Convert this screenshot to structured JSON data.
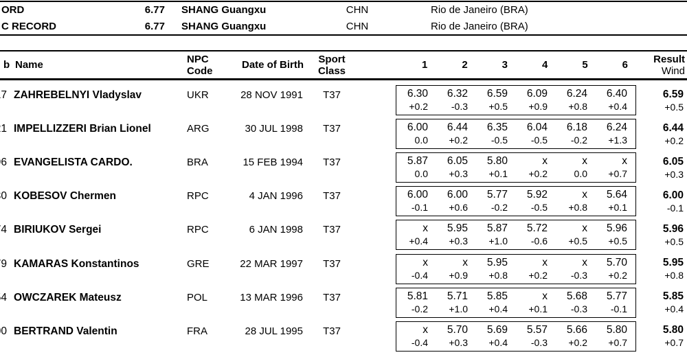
{
  "colors": {
    "background": "#ffffff",
    "text": "#000000",
    "rule": "#000000"
  },
  "records": {
    "rows": [
      {
        "label": "ORD",
        "mark": "6.77",
        "athlete": "SHANG Guangxu",
        "npc": "CHN",
        "location": "Rio de Janeiro (BRA)"
      },
      {
        "label": "C RECORD",
        "mark": "6.77",
        "athlete": "SHANG Guangxu",
        "npc": "CHN",
        "location": "Rio de Janeiro (BRA)"
      }
    ]
  },
  "table": {
    "header": {
      "bib": "b",
      "name": "Name",
      "npc_line1": "NPC",
      "npc_line2": "Code",
      "dob": "Date of Birth",
      "class_line1": "Sport",
      "class_line2": "Class",
      "attempts": [
        "1",
        "2",
        "3",
        "4",
        "5",
        "6"
      ],
      "result_line1": "Result",
      "result_line2": "Wind"
    },
    "rows": [
      {
        "bib": "17",
        "name": "ZAHREBELNYI Vladyslav",
        "npc": "UKR",
        "dob": "28 NOV 1991",
        "sport_class": "T37",
        "attempts": [
          {
            "d": "6.30",
            "w": "+0.2"
          },
          {
            "d": "6.32",
            "w": "-0.3"
          },
          {
            "d": "6.59",
            "w": "+0.5"
          },
          {
            "d": "6.09",
            "w": "+0.9"
          },
          {
            "d": "6.24",
            "w": "+0.8"
          },
          {
            "d": "6.40",
            "w": "+0.4"
          }
        ],
        "result": "6.59",
        "result_wind": "+0.5"
      },
      {
        "bib": "21",
        "name": "IMPELLIZZERI Brian Lionel",
        "npc": "ARG",
        "dob": "30 JUL 1998",
        "sport_class": "T37",
        "attempts": [
          {
            "d": "6.00",
            "w": "0.0"
          },
          {
            "d": "6.44",
            "w": "+0.2"
          },
          {
            "d": "6.35",
            "w": "-0.5"
          },
          {
            "d": "6.04",
            "w": "-0.5"
          },
          {
            "d": "6.18",
            "w": "-0.2"
          },
          {
            "d": "6.24",
            "w": "+1.3"
          }
        ],
        "result": "6.44",
        "result_wind": "+0.2"
      },
      {
        "bib": "96",
        "name": "EVANGELISTA CARDO.",
        "npc": "BRA",
        "dob": "15 FEB 1994",
        "sport_class": "T37",
        "attempts": [
          {
            "d": "5.87",
            "w": "0.0"
          },
          {
            "d": "6.05",
            "w": "+0.3"
          },
          {
            "d": "5.80",
            "w": "+0.1"
          },
          {
            "d": "x",
            "w": "+0.2"
          },
          {
            "d": "x",
            "w": "0.0"
          },
          {
            "d": "x",
            "w": "+0.7"
          }
        ],
        "result": "6.05",
        "result_wind": "+0.3"
      },
      {
        "bib": "30",
        "name": "KOBESOV Chermen",
        "npc": "RPC",
        "dob": "4 JAN 1996",
        "sport_class": "T37",
        "attempts": [
          {
            "d": "6.00",
            "w": "-0.1"
          },
          {
            "d": "6.00",
            "w": "+0.6"
          },
          {
            "d": "5.77",
            "w": "-0.2"
          },
          {
            "d": "5.92",
            "w": "-0.5"
          },
          {
            "d": "x",
            "w": "+0.8"
          },
          {
            "d": "5.64",
            "w": "+0.1"
          }
        ],
        "result": "6.00",
        "result_wind": "-0.1"
      },
      {
        "bib": "74",
        "name": "BIRIUKOV Sergei",
        "npc": "RPC",
        "dob": "6 JAN 1998",
        "sport_class": "T37",
        "attempts": [
          {
            "d": "x",
            "w": "+0.4"
          },
          {
            "d": "5.95",
            "w": "+0.3"
          },
          {
            "d": "5.87",
            "w": "+1.0"
          },
          {
            "d": "5.72",
            "w": "-0.6"
          },
          {
            "d": "x",
            "w": "+0.5"
          },
          {
            "d": "5.96",
            "w": "+0.5"
          }
        ],
        "result": "5.96",
        "result_wind": "+0.5"
      },
      {
        "bib": "79",
        "name": "KAMARAS Konstantinos",
        "npc": "GRE",
        "dob": "22 MAR 1997",
        "sport_class": "T37",
        "attempts": [
          {
            "d": "x",
            "w": "-0.4"
          },
          {
            "d": "x",
            "w": "+0.9"
          },
          {
            "d": "5.95",
            "w": "+0.8"
          },
          {
            "d": "x",
            "w": "+0.2"
          },
          {
            "d": "x",
            "w": "-0.3"
          },
          {
            "d": "5.70",
            "w": "+0.2"
          }
        ],
        "result": "5.95",
        "result_wind": "+0.8"
      },
      {
        "bib": "54",
        "name": "OWCZAREK Mateusz",
        "npc": "POL",
        "dob": "13 MAR 1996",
        "sport_class": "T37",
        "attempts": [
          {
            "d": "5.81",
            "w": "-0.2"
          },
          {
            "d": "5.71",
            "w": "+1.0"
          },
          {
            "d": "5.85",
            "w": "+0.4"
          },
          {
            "d": "x",
            "w": "+0.1"
          },
          {
            "d": "5.68",
            "w": "-0.3"
          },
          {
            "d": "5.77",
            "w": "-0.1"
          }
        ],
        "result": "5.85",
        "result_wind": "+0.4"
      },
      {
        "bib": "00",
        "name": "BERTRAND Valentin",
        "npc": "FRA",
        "dob": "28 JUL 1995",
        "sport_class": "T37",
        "attempts": [
          {
            "d": "x",
            "w": "-0.4"
          },
          {
            "d": "5.70",
            "w": "+0.3"
          },
          {
            "d": "5.69",
            "w": "+0.4"
          },
          {
            "d": "5.57",
            "w": "-0.3"
          },
          {
            "d": "5.66",
            "w": "+0.2"
          },
          {
            "d": "5.80",
            "w": "+0.7"
          }
        ],
        "result": "5.80",
        "result_wind": "+0.7"
      }
    ]
  }
}
